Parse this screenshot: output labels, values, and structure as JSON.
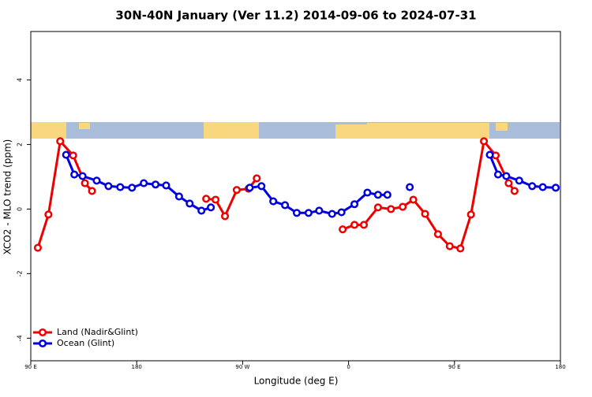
{
  "chart_data": {
    "type": "line",
    "title": "30N-40N January (Ver 11.2)   2014-09-06 to 2024-07-31",
    "x_label": "Longitude (deg E)",
    "y_label": "XCO2 - MLO trend (ppm)",
    "xlim": [
      90,
      540
    ],
    "ylim": [
      -4.7,
      5.5
    ],
    "xticks": [
      {
        "value": 90,
        "label": "90 E"
      },
      180,
      {
        "value": 270,
        "label": "90 W"
      },
      {
        "value": 360,
        "label": "0"
      },
      {
        "value": 450,
        "label": "90 E"
      },
      {
        "value": 540,
        "label": "180"
      }
    ],
    "yticks": [
      -4,
      -2,
      0,
      2,
      4
    ],
    "legend": "bottom-left",
    "series": [
      {
        "name": "Land (Nadir&Glint)",
        "color": "#ee0000",
        "x": [
          96,
          105,
          115,
          126,
          136,
          142,
          190,
          239,
          247,
          255,
          265,
          275,
          282,
          320,
          355,
          365,
          373,
          385,
          396,
          406,
          415,
          425,
          436,
          446,
          455,
          464,
          475,
          485,
          496,
          501
        ],
        "y": [
          -1.2,
          -0.17,
          2.1,
          1.66,
          0.8,
          0.56,
          null,
          0.32,
          0.29,
          -0.22,
          0.59,
          0.63,
          0.95,
          null,
          -0.63,
          -0.49,
          -0.49,
          0.05,
          0,
          0.07,
          0.29,
          -0.15,
          -0.78,
          -1.15,
          -1.22,
          -0.17,
          2.1,
          1.66,
          0.8,
          0.56
        ]
      },
      {
        "name": "Ocean (Glint)",
        "color": "#0000dd",
        "x": [
          120,
          127,
          134,
          146,
          156,
          166,
          176,
          186,
          196,
          205,
          216,
          225,
          235,
          243,
          260,
          276,
          286,
          296,
          306,
          316,
          326,
          335,
          346,
          354,
          365,
          376,
          385,
          393,
          402,
          412,
          440,
          480,
          487,
          494,
          505,
          516,
          525,
          536
        ],
        "y": [
          1.68,
          1.07,
          1.02,
          0.88,
          0.71,
          0.68,
          0.66,
          0.8,
          0.76,
          0.73,
          0.39,
          0.17,
          -0.05,
          0.05,
          null,
          0.66,
          0.71,
          0.24,
          0.12,
          -0.12,
          -0.12,
          -0.05,
          -0.15,
          -0.1,
          0.15,
          0.51,
          0.44,
          0.44,
          null,
          0.68,
          null,
          1.68,
          1.07,
          1.02,
          0.88,
          0.71,
          0.68,
          0.66
        ]
      }
    ]
  }
}
